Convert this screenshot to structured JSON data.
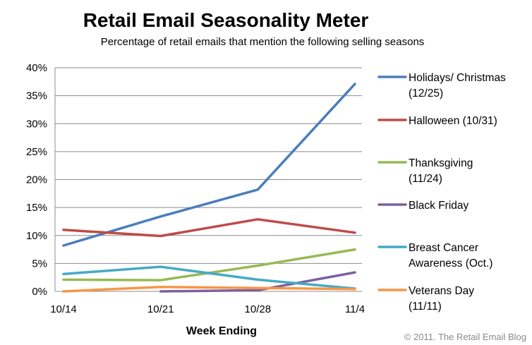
{
  "chart_data": {
    "type": "line",
    "title": "Retail Email Seasonality Meter",
    "subtitle": "Percentage of retail emails that mention the following selling seasons",
    "xlabel": "Week Ending",
    "ylabel": "",
    "categories": [
      "10/14",
      "10/21",
      "10/28",
      "11/4"
    ],
    "ylim": [
      0,
      40
    ],
    "yticks": [
      "0%",
      "5%",
      "10%",
      "15%",
      "20%",
      "25%",
      "30%",
      "35%",
      "40%"
    ],
    "grid": true,
    "legend_position": "right",
    "series": [
      {
        "name": "Holidays/ Christmas (12/25)",
        "legend_lines": [
          "Holidays/ Christmas",
          "(12/25)"
        ],
        "color": "#4a7ebb",
        "values": [
          8.2,
          13.4,
          18.2,
          37.1
        ]
      },
      {
        "name": "Halloween (10/31)",
        "legend_lines": [
          "Halloween (10/31)"
        ],
        "color": "#be4b48",
        "values": [
          11.0,
          9.9,
          12.9,
          10.5
        ]
      },
      {
        "name": "Thanksgiving (11/24)",
        "legend_lines": [
          "Thanksgiving",
          "(11/24)"
        ],
        "color": "#98b954",
        "values": [
          2.1,
          2.0,
          4.6,
          7.5
        ]
      },
      {
        "name": "Black Friday",
        "legend_lines": [
          "Black Friday"
        ],
        "color": "#7d60a0",
        "values": [
          null,
          0.0,
          0.2,
          3.4
        ]
      },
      {
        "name": "Breast Cancer Awareness (Oct.)",
        "legend_lines": [
          "Breast Cancer",
          "Awareness (Oct.)"
        ],
        "color": "#46aac5",
        "values": [
          3.1,
          4.4,
          2.1,
          0.5
        ]
      },
      {
        "name": "Veterans Day (11/11)",
        "legend_lines": [
          "Veterans Day",
          "(11/11)"
        ],
        "color": "#f79646",
        "values": [
          0.0,
          0.8,
          0.6,
          0.4
        ]
      }
    ],
    "annotation": "© 2011. The Retail Email Blog"
  }
}
